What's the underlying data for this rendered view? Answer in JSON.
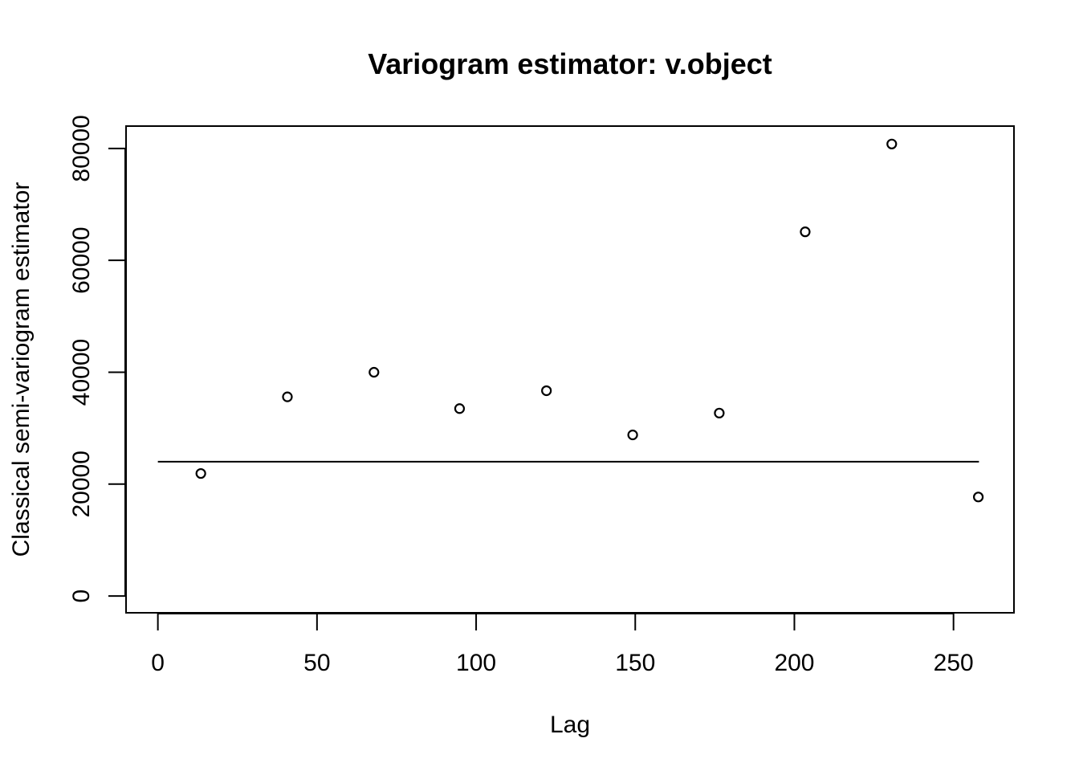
{
  "chart_data": {
    "type": "scatter",
    "title": "Variogram estimator: v.object",
    "xlabel": "Lag",
    "ylabel": "Classical semi-variogram estimator",
    "xlim": [
      -10,
      269
    ],
    "ylim": [
      -3000,
      84000
    ],
    "x_ticks": [
      0,
      50,
      100,
      150,
      200,
      250
    ],
    "y_ticks": [
      0,
      20000,
      40000,
      60000,
      80000
    ],
    "grid": false,
    "series": [
      {
        "marker": "open-circle",
        "x": [
          13.5,
          40.7,
          67.9,
          94.8,
          122.1,
          149.2,
          176.4,
          203.4,
          230.6,
          257.8
        ],
        "y": [
          21900,
          35600,
          40000,
          33500,
          36700,
          28800,
          32700,
          65100,
          80800,
          17700
        ]
      }
    ],
    "reference_line": {
      "x": [
        0,
        258
      ],
      "y": [
        24000,
        24000
      ]
    }
  }
}
